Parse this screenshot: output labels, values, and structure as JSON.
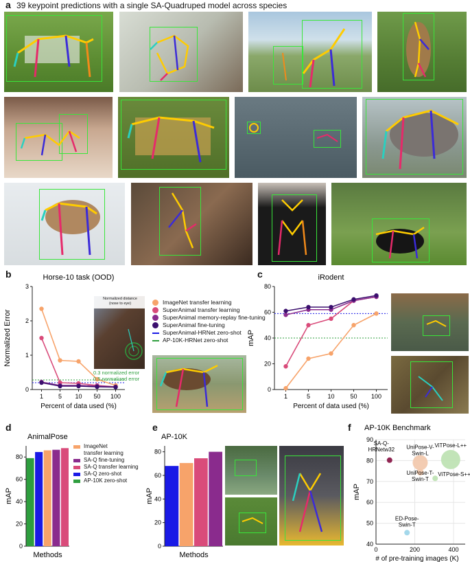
{
  "figure": {
    "panel_a": {
      "letter": "a",
      "title": "39 keypoint predictions with a single SA-Quadruped model across species"
    },
    "panel_b": {
      "letter": "b",
      "inset_label": "Normalized distance\n(nose to eye)",
      "inset_line1": "0.3 normalized error",
      "inset_line2": "0.5 normalized error"
    },
    "panel_c": {
      "letter": "c"
    },
    "panel_d": {
      "letter": "d"
    },
    "panel_e": {
      "letter": "e"
    },
    "panel_f": {
      "letter": "f"
    }
  },
  "legend_b": [
    {
      "label": "ImageNet transfer learning",
      "color": "#f7a36a",
      "kind": "dot"
    },
    {
      "label": "SuperAnimal transfer learning",
      "color": "#d94b7a",
      "kind": "dot"
    },
    {
      "label": "SuperAnimal memory-replay fine-tuning",
      "color": "#8a2b8d",
      "kind": "dot"
    },
    {
      "label": "SuperAnimal fine-tuning",
      "color": "#3b0f6e",
      "kind": "dot"
    },
    {
      "label": "SuperAnimal-HRNet zero-shot",
      "color": "#1a1ae6",
      "kind": "line"
    },
    {
      "label": "AP-10K-HRNet zero-shot",
      "color": "#2e9e3e",
      "kind": "line"
    }
  ],
  "legend_d": [
    {
      "label": "ImageNet\ntransfer learning",
      "color": "#f7a36a"
    },
    {
      "label": "SA-Q fine-tuning",
      "color": "#8a2b8d"
    },
    {
      "label": "SA-Q transfer learning",
      "color": "#d94b7a"
    },
    {
      "label": "SA-Q zero-shot",
      "color": "#1a1ae6"
    },
    {
      "label": "AP-10K zero-shot",
      "color": "#2e9e3e"
    }
  ],
  "chart_data": [
    {
      "id": "b",
      "type": "line",
      "title": "Horse-10 task (OOD)",
      "xlabel": "Percent of data used (%)",
      "ylabel": "Normalized Error",
      "categories": [
        "1",
        "5",
        "10",
        "50",
        "100"
      ],
      "ylim": [
        0,
        3
      ],
      "yticks": [
        0,
        1,
        2,
        3
      ],
      "series": [
        {
          "name": "ImageNet transfer learning",
          "color": "#f7a36a",
          "values": [
            2.35,
            0.85,
            0.82,
            0.3,
            0.12
          ]
        },
        {
          "name": "SuperAnimal transfer learning",
          "color": "#d94b7a",
          "values": [
            1.5,
            0.2,
            0.18,
            0.12,
            0.08
          ]
        },
        {
          "name": "SuperAnimal memory-replay fine-tuning",
          "color": "#8a2b8d",
          "values": [
            0.22,
            0.12,
            0.12,
            0.1,
            0.08
          ]
        },
        {
          "name": "SuperAnimal fine-tuning",
          "color": "#3b0f6e",
          "values": [
            0.2,
            0.1,
            0.1,
            0.08,
            0.07
          ]
        }
      ],
      "hlines": [
        {
          "name": "SuperAnimal-HRNet zero-shot",
          "color": "#1a1ae6",
          "value": 0.2
        },
        {
          "name": "AP-10K-HRNet zero-shot",
          "color": "#2e9e3e",
          "value": 0.28
        }
      ]
    },
    {
      "id": "c",
      "type": "line",
      "title": "iRodent",
      "xlabel": "Percent of data used (%)",
      "ylabel": "mAP",
      "categories": [
        "1",
        "5",
        "10",
        "50",
        "100"
      ],
      "ylim": [
        0,
        80
      ],
      "yticks": [
        0,
        20,
        40,
        60,
        80
      ],
      "series": [
        {
          "name": "ImageNet transfer learning",
          "color": "#f7a36a",
          "values": [
            1,
            24,
            28,
            50,
            59
          ]
        },
        {
          "name": "SuperAnimal transfer learning",
          "color": "#d94b7a",
          "values": [
            18,
            50,
            55,
            69,
            72
          ]
        },
        {
          "name": "SuperAnimal memory-replay fine-tuning",
          "color": "#8a2b8d",
          "values": [
            58,
            62,
            62,
            69,
            72
          ]
        },
        {
          "name": "SuperAnimal fine-tuning",
          "color": "#3b0f6e",
          "values": [
            61,
            64,
            64,
            70,
            73
          ]
        }
      ],
      "hlines": [
        {
          "name": "SuperAnimal-HRNet zero-shot",
          "color": "#1a1ae6",
          "value": 59
        },
        {
          "name": "AP-10K-HRNet zero-shot",
          "color": "#2e9e3e",
          "value": 40
        }
      ]
    },
    {
      "id": "d",
      "type": "bar",
      "title": "AnimalPose",
      "xlabel": "Methods",
      "ylabel": "mAP",
      "ylim": [
        0,
        90
      ],
      "yticks": [
        0,
        20,
        40,
        60,
        80
      ],
      "categories": [
        "AP-10K zero-shot",
        "SA-Q zero-shot",
        "ImageNet transfer learning",
        "SA-Q fine-tuning",
        "SA-Q transfer learning"
      ],
      "values": [
        79,
        84.5,
        86,
        86.5,
        88
      ],
      "colors": [
        "#2e9e3e",
        "#1a1ae6",
        "#f7a36a",
        "#8a2b8d",
        "#d94b7a"
      ]
    },
    {
      "id": "e",
      "type": "bar",
      "title": "AP-10K",
      "xlabel": "Methods",
      "ylabel": "mAP",
      "ylim": [
        0,
        85
      ],
      "yticks": [
        0,
        20,
        40,
        60,
        80
      ],
      "categories": [
        "SA-Q zero-shot",
        "ImageNet transfer learning",
        "SA-Q transfer learning",
        "SA-Q fine-tuning"
      ],
      "values": [
        68,
        70.5,
        74.5,
        80
      ],
      "colors": [
        "#1a1ae6",
        "#f7a36a",
        "#d94b7a",
        "#8a2b8d"
      ]
    },
    {
      "id": "f",
      "type": "scatter",
      "title": "AP-10K Benchmark",
      "xlabel": "# of pre-training images (K)",
      "ylabel": "mAP",
      "xlim": [
        0,
        460
      ],
      "ylim": [
        40,
        90
      ],
      "xticks": [
        0,
        200,
        400
      ],
      "yticks": [
        40,
        50,
        60,
        70,
        80,
        90
      ],
      "points": [
        {
          "label": "SA-Q-\nHRNetw32",
          "x": 70,
          "y": 80.2,
          "size": 4,
          "color": "#8b1a4a"
        },
        {
          "label": "UniPose-V-\nSwin-L",
          "x": 228,
          "y": 79,
          "size": 11,
          "color": "#f2c9ae"
        },
        {
          "label": "UniPose-T-\nSwin-T",
          "x": 228,
          "y": 74.5,
          "size": 5,
          "color": "#f2c9ae"
        },
        {
          "label": "ViTPose-L++",
          "x": 385,
          "y": 80.5,
          "size": 14,
          "color": "#bfe3b4"
        },
        {
          "label": "ViTPose-S++",
          "x": 305,
          "y": 71.5,
          "size": 4,
          "color": "#bfe3b4"
        },
        {
          "label": "ED-Pose-\nSwin-T",
          "x": 160,
          "y": 45.5,
          "size": 4,
          "color": "#9fd6ea"
        }
      ]
    }
  ]
}
